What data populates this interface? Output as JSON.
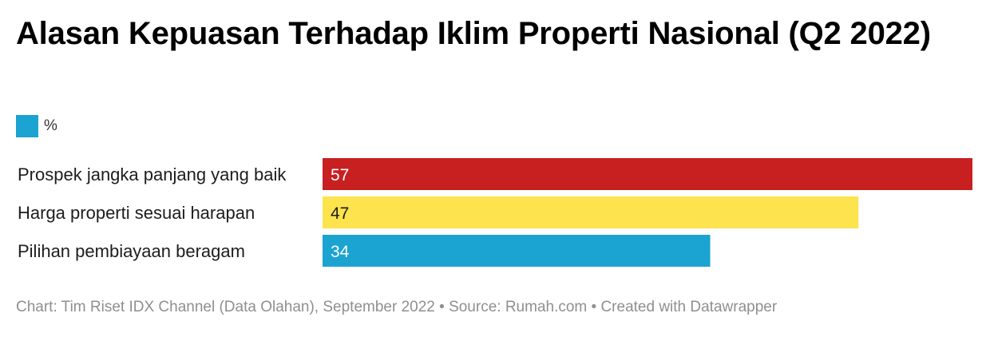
{
  "title": "Alasan Kepuasan Terhadap Iklim Properti Nasional (Q2 2022)",
  "legend": {
    "label": "%",
    "color": "#1ba3d1"
  },
  "footer": "Chart: Tim Riset IDX Channel (Data Olahan), September 2022 • Source: Rumah.com • Created with Datawrapper",
  "chart_data": {
    "type": "bar",
    "orientation": "horizontal",
    "title": "Alasan Kepuasan Terhadap Iklim Properti Nasional (Q2 2022)",
    "categories": [
      "Prospek jangka panjang yang baik",
      "Harga properti sesuai harapan",
      "Pilihan pembiayaan beragam"
    ],
    "series": [
      {
        "name": "%",
        "values": [
          57,
          47,
          34
        ]
      }
    ],
    "bar_colors": [
      "#c81f20",
      "#fde34d",
      "#1ba3d1"
    ],
    "value_label_colors": [
      "#ffffff",
      "#1d1d1d",
      "#ffffff"
    ],
    "xlim": [
      0,
      57
    ],
    "grid": false,
    "legend_position": "top-left"
  }
}
